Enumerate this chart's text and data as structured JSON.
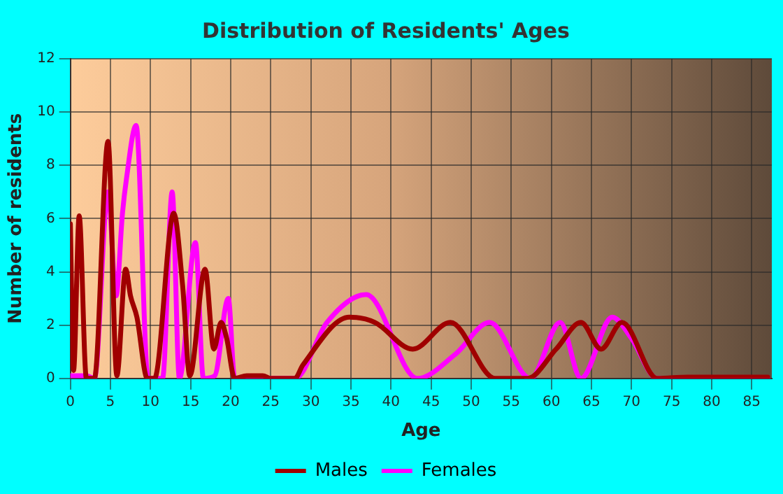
{
  "chart_data": {
    "type": "line",
    "title": "Distribution of Residents' Ages",
    "xlabel": "Age",
    "ylabel": "Number of residents",
    "xlim": [
      0,
      87.5
    ],
    "xticks": [
      0,
      5,
      10,
      15,
      20,
      25,
      30,
      35,
      40,
      45,
      50,
      55,
      60,
      65,
      70,
      75,
      80,
      85
    ],
    "ylim": [
      0,
      12
    ],
    "yticks": [
      0,
      2,
      4,
      6,
      8,
      10,
      12
    ],
    "grid": true,
    "legend": "bottom",
    "marker": "none",
    "line_style": "solid",
    "series": [
      {
        "name": "Males",
        "color": "#a00000",
        "x": [
          0,
          0.4,
          1.1,
          2,
          3,
          4.7,
          5.8,
          6.9,
          7.5,
          8.3,
          9.6,
          10.5,
          12.9,
          14,
          14.9,
          16.8,
          17.9,
          18.8,
          19.5,
          20.5,
          22,
          24,
          25,
          28,
          29,
          34.8,
          38,
          42.7,
          47.4,
          53,
          57,
          60.6,
          63.7,
          66.2,
          68.8,
          73.2,
          77,
          87
        ],
        "values": [
          5.8,
          0.3,
          6.1,
          0,
          0,
          8.9,
          0.1,
          4.1,
          3.1,
          2.3,
          0,
          0,
          6.2,
          3.5,
          0.1,
          4.1,
          1.1,
          2.1,
          1.5,
          0,
          0.1,
          0.1,
          0,
          0,
          0.5,
          2.3,
          2.1,
          1.1,
          2.1,
          0,
          0,
          1.1,
          2.1,
          1.1,
          2.1,
          0,
          0.05,
          0.05
        ]
      },
      {
        "name": "Females",
        "color": "#ff00ff",
        "x": [
          0,
          2,
          3,
          4.7,
          5.7,
          6.5,
          7,
          8.2,
          9.7,
          11.5,
          12.7,
          13.6,
          15.6,
          16.6,
          18,
          19.7,
          20.5,
          28,
          32,
          36.9,
          43.3,
          48,
          52.3,
          57.4,
          61.1,
          63.7,
          67.6,
          70,
          73.2,
          87
        ],
        "values": [
          0.1,
          0.1,
          0,
          7,
          3.1,
          6.2,
          7.5,
          9.5,
          0,
          0,
          7,
          0,
          5.1,
          0,
          0.1,
          3,
          0,
          0,
          2.1,
          3.15,
          0,
          0.9,
          2.1,
          0,
          2.1,
          0,
          2.3,
          1.5,
          0,
          0
        ]
      }
    ]
  }
}
